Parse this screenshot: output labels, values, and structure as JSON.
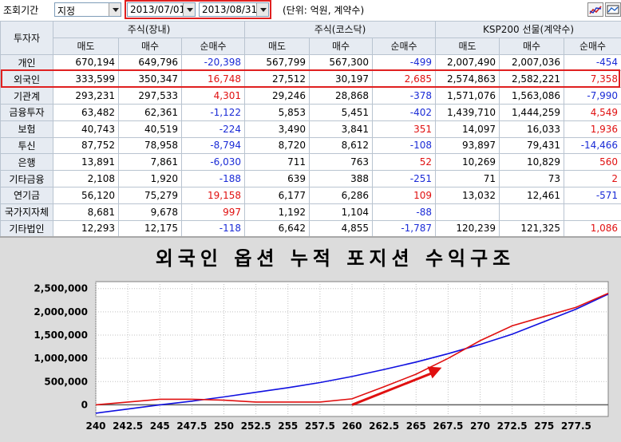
{
  "toolbar": {
    "period_label": "조회기간",
    "period_mode": "지정",
    "start_date": "2013/07/01",
    "end_date": "2013/08/31",
    "unit_text": "(단위: 억원, 계약수)",
    "icons": [
      "line-chart-icon",
      "chart-settings-icon"
    ]
  },
  "table": {
    "corner_header": "투자자",
    "groups": [
      "주식(장내)",
      "주식(코스닥)",
      "KSP200 선물(계약수)"
    ],
    "subheaders": [
      "매도",
      "매수",
      "순매수",
      "매도",
      "매수",
      "순매수",
      "매도",
      "매수",
      "순매수"
    ],
    "rows": [
      {
        "name": "개인",
        "cells": [
          "670,194",
          "649,796",
          "-20,398",
          "567,799",
          "567,300",
          "-499",
          "2,007,490",
          "2,007,036",
          "-454"
        ]
      },
      {
        "name": "외국인",
        "cells": [
          "333,599",
          "350,347",
          "16,748",
          "27,512",
          "30,197",
          "2,685",
          "2,574,863",
          "2,582,221",
          "7,358"
        ]
      },
      {
        "name": "기관계",
        "cells": [
          "293,231",
          "297,533",
          "4,301",
          "29,246",
          "28,868",
          "-378",
          "1,571,076",
          "1,563,086",
          "-7,990"
        ]
      },
      {
        "name": "금융투자",
        "cells": [
          "63,482",
          "62,361",
          "-1,122",
          "5,853",
          "5,451",
          "-402",
          "1,439,710",
          "1,444,259",
          "4,549"
        ]
      },
      {
        "name": "보험",
        "cells": [
          "40,743",
          "40,519",
          "-224",
          "3,490",
          "3,841",
          "351",
          "14,097",
          "16,033",
          "1,936"
        ]
      },
      {
        "name": "투신",
        "cells": [
          "87,752",
          "78,958",
          "-8,794",
          "8,720",
          "8,612",
          "-108",
          "93,897",
          "79,431",
          "-14,466"
        ]
      },
      {
        "name": "은행",
        "cells": [
          "13,891",
          "7,861",
          "-6,030",
          "711",
          "763",
          "52",
          "10,269",
          "10,829",
          "560"
        ]
      },
      {
        "name": "기타금융",
        "cells": [
          "2,108",
          "1,920",
          "-188",
          "639",
          "388",
          "-251",
          "71",
          "73",
          "2"
        ]
      },
      {
        "name": "연기금",
        "cells": [
          "56,120",
          "75,279",
          "19,158",
          "6,177",
          "6,286",
          "109",
          "13,032",
          "12,461",
          "-571"
        ]
      },
      {
        "name": "국가지자체",
        "cells": [
          "8,681",
          "9,678",
          "997",
          "1,192",
          "1,104",
          "-88",
          "",
          "",
          ""
        ]
      },
      {
        "name": "기타법인",
        "cells": [
          "12,293",
          "12,175",
          "-118",
          "6,642",
          "4,855",
          "-1,787",
          "120,239",
          "121,325",
          "1,086"
        ]
      }
    ]
  },
  "chart": {
    "title": "외국인 옵션 누적 포지션 수익구조"
  },
  "chart_data": {
    "type": "line",
    "title": "외국인 옵션 누적 포지션 수익구조",
    "x_ticks": [
      240,
      242.5,
      245,
      247.5,
      250,
      252.5,
      255,
      257.5,
      260,
      262.5,
      265,
      267.5,
      270,
      272.5,
      275,
      277.5
    ],
    "y_ticks": [
      "2,500,000",
      "2,000,000",
      "1,500,000",
      "1,000,000",
      "500,000",
      "0"
    ],
    "xlim": [
      240,
      280
    ],
    "ylim": [
      -250000,
      2650000
    ],
    "grid": true,
    "series": [
      {
        "color": "#1010e0",
        "x": [
          240,
          242.5,
          245,
          247.5,
          250,
          252.5,
          255,
          257.5,
          260,
          262.5,
          265,
          267.5,
          270,
          272.5,
          275,
          277.5,
          280
        ],
        "y": [
          -180000,
          -90000,
          0,
          80000,
          170000,
          270000,
          370000,
          480000,
          610000,
          760000,
          920000,
          1100000,
          1300000,
          1520000,
          1790000,
          2060000,
          2380000
        ]
      },
      {
        "color": "#e01010",
        "x": [
          240,
          242.5,
          245,
          247.5,
          250,
          252.5,
          255,
          257.5,
          260,
          262.5,
          265,
          267.5,
          270,
          272.5,
          275,
          277.5,
          280
        ],
        "y": [
          0,
          60000,
          120000,
          120000,
          100000,
          60000,
          60000,
          60000,
          130000,
          390000,
          660000,
          1000000,
          1380000,
          1700000,
          1900000,
          2100000,
          2400000
        ]
      }
    ],
    "annotation": {
      "type": "arrow",
      "color": "#e01010",
      "from": [
        260,
        0
      ],
      "to": [
        267,
        800000
      ]
    }
  }
}
